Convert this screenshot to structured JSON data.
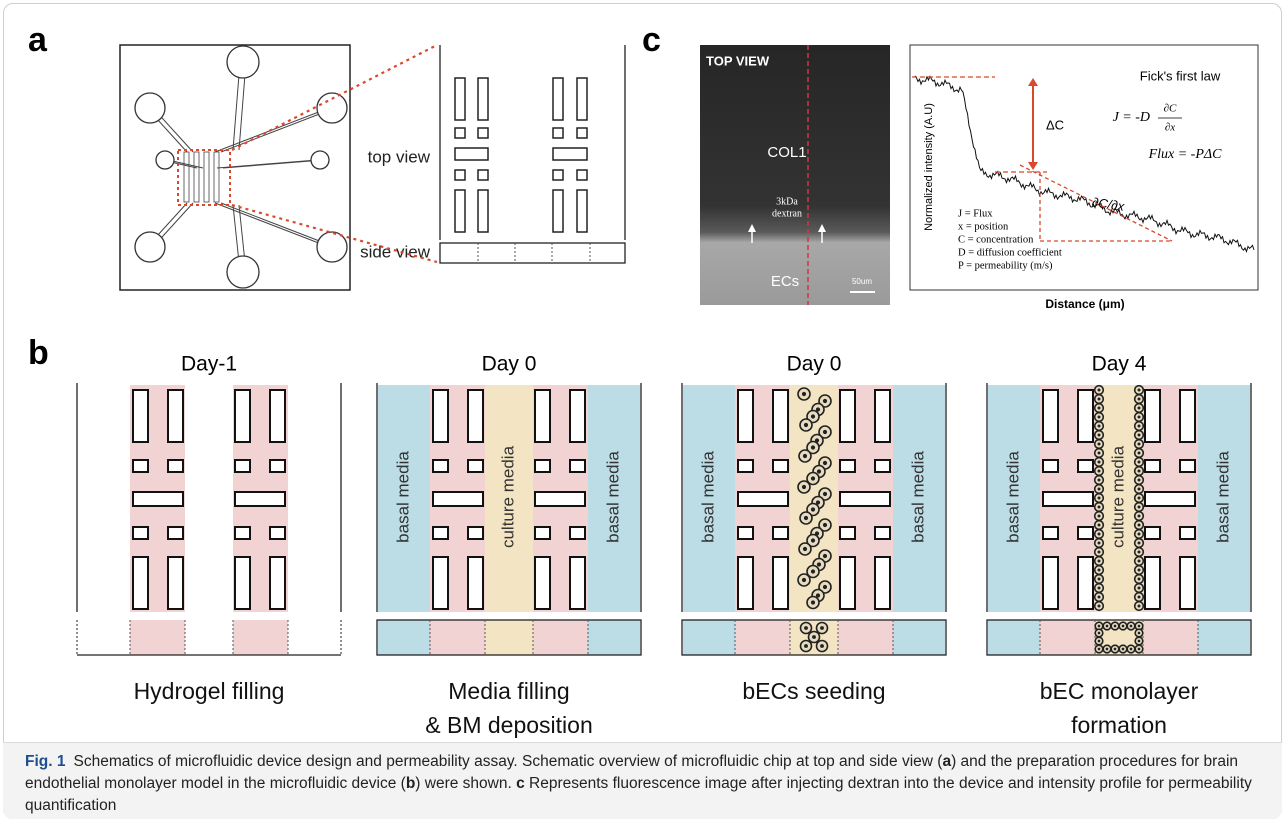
{
  "panel_a": {
    "label": "a",
    "top_view": "top view",
    "side_view": "side view"
  },
  "panel_b": {
    "label": "b",
    "steps": [
      {
        "day": "Day-1",
        "caption": [
          "Hydrogel filling"
        ]
      },
      {
        "day": "Day 0",
        "media": [
          "basal media",
          "culture media",
          "basal media"
        ],
        "caption": [
          "Media filling",
          "& BM deposition"
        ]
      },
      {
        "day": "Day 0",
        "media": [
          "basal media",
          "basal media"
        ],
        "caption": [
          "bECs seeding"
        ]
      },
      {
        "day": "Day 4",
        "media": [
          "basal media",
          "culture media",
          "basal media"
        ],
        "caption": [
          "bEC monolayer",
          "formation"
        ]
      }
    ]
  },
  "panel_c": {
    "label": "c",
    "image": {
      "view": "TOP VIEW",
      "gel": "COL1",
      "dextran": [
        "3kDa",
        "dextran"
      ],
      "cells": "ECs",
      "scale": "50um"
    },
    "plot": {
      "law": "Fick's first law",
      "equation_1": {
        "lhs": "J = -D",
        "num": "∂C",
        "den": "∂x"
      },
      "equation_2": "Flux = -PΔC",
      "delta": "ΔC",
      "slope": "∂C/∂x",
      "legend": [
        "J = Flux",
        "x = position",
        "C = concentration",
        "D = diffusion coefficient",
        "P = permeability (m/s)"
      ],
      "ylabel": "Normalized intensity (A.U)",
      "xlabel": "Distance (μm)"
    }
  },
  "caption": {
    "fig": "Fig. 1",
    "parts": [
      {
        "text": "Schematics of microfluidic device design and permeability assay. Schematic overview of microfluidic chip at top and side view ("
      },
      {
        "text": "a",
        "bold": true
      },
      {
        "text": ") and the preparation procedures for brain endothelial monolayer model in the microfluidic device ("
      },
      {
        "text": "b",
        "bold": true
      },
      {
        "text": ") were shown. "
      },
      {
        "text": "c",
        "bold": true
      },
      {
        "text": " Represents fluorescence image after injecting dextran into the device and intensity profile for permeability quantification"
      }
    ]
  }
}
